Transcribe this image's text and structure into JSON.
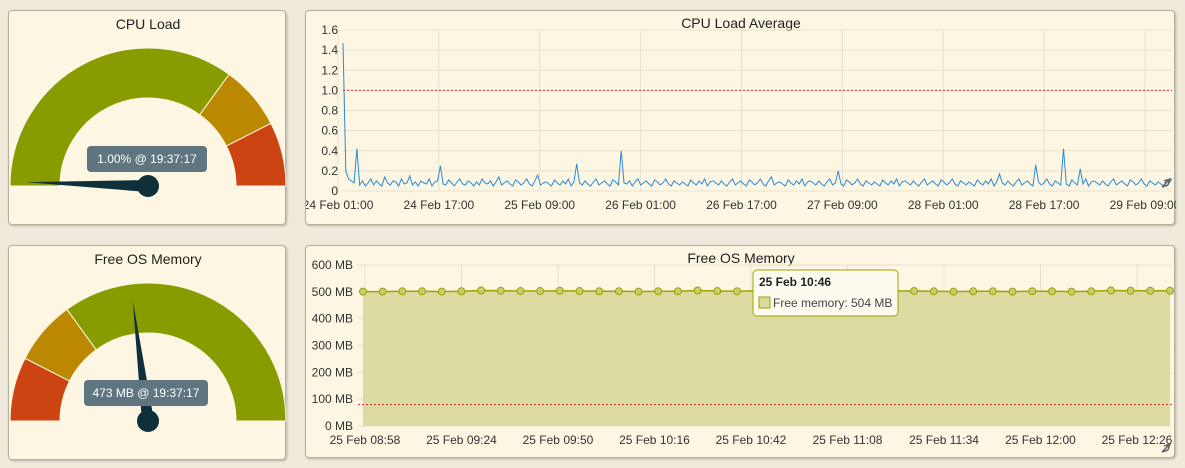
{
  "gauges": [
    {
      "title": "CPU Load",
      "value_label": "1.00% @ 19:37:17",
      "value_fraction": 0.01,
      "bands": [
        {
          "from": 0.0,
          "to": 0.7,
          "color": "#889c00"
        },
        {
          "from": 0.7,
          "to": 0.85,
          "color": "#bb8800"
        },
        {
          "from": 0.85,
          "to": 1.0,
          "color": "#cc4411"
        }
      ]
    },
    {
      "title": "Free OS Memory",
      "value_label": "473 MB @ 19:37:17",
      "value_fraction": 0.46,
      "bands": [
        {
          "from": 0.0,
          "to": 0.15,
          "color": "#cc4411"
        },
        {
          "from": 0.15,
          "to": 0.3,
          "color": "#bb8800"
        },
        {
          "from": 0.3,
          "to": 1.0,
          "color": "#889c00"
        }
      ]
    }
  ],
  "colors": {
    "needle": "#0f2f3a",
    "label_bg": "#5f7580",
    "cpu_line": "#2b8ad6",
    "threshold": "#d93030",
    "mem_line": "#9aa400",
    "mem_area": "#d8d99a",
    "grid": "#e6e1cf"
  },
  "chart_data": [
    {
      "type": "line",
      "title": "CPU Load Average",
      "ylim": [
        0,
        1.6
      ],
      "yticks": [
        "0",
        "0.2",
        "0.4",
        "0.6",
        "0.8",
        "1.0",
        "1.2",
        "1.4",
        "1.6"
      ],
      "xticks": [
        "24 Feb 01:00",
        "24 Feb 17:00",
        "25 Feb 09:00",
        "26 Feb 01:00",
        "26 Feb 17:00",
        "27 Feb 09:00",
        "28 Feb 01:00",
        "28 Feb 17:00",
        "29 Feb 09:00"
      ],
      "threshold": 1.0,
      "series": [
        {
          "values": [
            1.47,
            0.2,
            0.12,
            0.1,
            0.08,
            0.42,
            0.06,
            0.1,
            0.05,
            0.08,
            0.12,
            0.06,
            0.1,
            0.07,
            0.05,
            0.14,
            0.08,
            0.06,
            0.1,
            0.09,
            0.05,
            0.12,
            0.07,
            0.08,
            0.15,
            0.06,
            0.09,
            0.05,
            0.1,
            0.08,
            0.07,
            0.12,
            0.05,
            0.09,
            0.1,
            0.25,
            0.07,
            0.06,
            0.11,
            0.08,
            0.05,
            0.09,
            0.12,
            0.07,
            0.06,
            0.1,
            0.08,
            0.05,
            0.09,
            0.06,
            0.12,
            0.08,
            0.07,
            0.1,
            0.05,
            0.09,
            0.14,
            0.06,
            0.08,
            0.1,
            0.07,
            0.05,
            0.11,
            0.09,
            0.06,
            0.08,
            0.12,
            0.07,
            0.05,
            0.1,
            0.16,
            0.06,
            0.08,
            0.09,
            0.07,
            0.05,
            0.11,
            0.08,
            0.06,
            0.1,
            0.07,
            0.12,
            0.05,
            0.09,
            0.27,
            0.08,
            0.06,
            0.1,
            0.07,
            0.05,
            0.09,
            0.12,
            0.06,
            0.08,
            0.1,
            0.07,
            0.05,
            0.11,
            0.09,
            0.06,
            0.4,
            0.08,
            0.07,
            0.1,
            0.05,
            0.09,
            0.12,
            0.06,
            0.08,
            0.1,
            0.07,
            0.05,
            0.11,
            0.09,
            0.06,
            0.08,
            0.12,
            0.07,
            0.05,
            0.1,
            0.08,
            0.06,
            0.09,
            0.07,
            0.05,
            0.11,
            0.08,
            0.06,
            0.1,
            0.07,
            0.12,
            0.05,
            0.09,
            0.1,
            0.08,
            0.06,
            0.1,
            0.07,
            0.05,
            0.09,
            0.12,
            0.06,
            0.08,
            0.1,
            0.07,
            0.05,
            0.11,
            0.09,
            0.06,
            0.08,
            0.12,
            0.07,
            0.05,
            0.1,
            0.14,
            0.06,
            0.08,
            0.09,
            0.07,
            0.05,
            0.11,
            0.08,
            0.06,
            0.1,
            0.07,
            0.12,
            0.05,
            0.09,
            0.1,
            0.08,
            0.06,
            0.1,
            0.07,
            0.05,
            0.09,
            0.12,
            0.06,
            0.08,
            0.2,
            0.07,
            0.05,
            0.11,
            0.09,
            0.06,
            0.08,
            0.12,
            0.07,
            0.05,
            0.1,
            0.08,
            0.06,
            0.09,
            0.07,
            0.05,
            0.11,
            0.08,
            0.06,
            0.1,
            0.07,
            0.12,
            0.05,
            0.09,
            0.1,
            0.08,
            0.06,
            0.1,
            0.07,
            0.05,
            0.09,
            0.12,
            0.06,
            0.08,
            0.1,
            0.07,
            0.05,
            0.11,
            0.09,
            0.06,
            0.08,
            0.12,
            0.07,
            0.05,
            0.1,
            0.08,
            0.06,
            0.09,
            0.07,
            0.05,
            0.11,
            0.08,
            0.06,
            0.1,
            0.07,
            0.12,
            0.05,
            0.09,
            0.17,
            0.08,
            0.06,
            0.1,
            0.07,
            0.05,
            0.09,
            0.12,
            0.06,
            0.08,
            0.1,
            0.07,
            0.05,
            0.26,
            0.09,
            0.06,
            0.08,
            0.12,
            0.07,
            0.05,
            0.1,
            0.08,
            0.06,
            0.42,
            0.07,
            0.05,
            0.11,
            0.08,
            0.06,
            0.22,
            0.07,
            0.12,
            0.05,
            0.09,
            0.1,
            0.08,
            0.06,
            0.1,
            0.07,
            0.05,
            0.09,
            0.12,
            0.06,
            0.08,
            0.1,
            0.07,
            0.05,
            0.11,
            0.09,
            0.06,
            0.08,
            0.12,
            0.07,
            0.05,
            0.1,
            0.08,
            0.06,
            0.09,
            0.07,
            0.05,
            0.11,
            0.08,
            0.12
          ]
        }
      ]
    },
    {
      "type": "area",
      "title": "Free OS Memory",
      "ylim": [
        0,
        600
      ],
      "yticks": [
        "0 MB",
        "100 MB",
        "200 MB",
        "300 MB",
        "400 MB",
        "500 MB",
        "600 MB"
      ],
      "xticks": [
        "25 Feb 08:58",
        "25 Feb 09:24",
        "25 Feb 09:50",
        "25 Feb 10:16",
        "25 Feb 10:42",
        "25 Feb 11:08",
        "25 Feb 11:34",
        "25 Feb 12:00",
        "25 Feb 12:26"
      ],
      "threshold": 80,
      "series": [
        {
          "name": "Free memory",
          "values": [
            501,
            501,
            502,
            502,
            501,
            502,
            505,
            504,
            503,
            503,
            504,
            503,
            502,
            502,
            501,
            502,
            502,
            505,
            503,
            502,
            504,
            504,
            505,
            503,
            502,
            502,
            504,
            503,
            503,
            502,
            501,
            502,
            502,
            501,
            502,
            502,
            501,
            502,
            505,
            504,
            504,
            504
          ]
        }
      ]
    }
  ],
  "tooltip": {
    "title": "25 Feb 10:46",
    "text": "Free memory: 504 MB"
  }
}
